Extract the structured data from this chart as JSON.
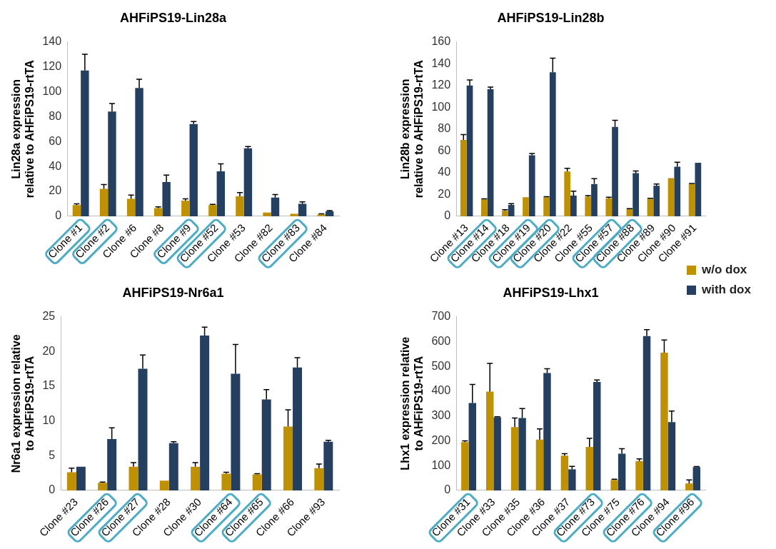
{
  "chart_data": [
    {
      "type": "bar",
      "title": "AHFiPS19-Lin28a",
      "ylabel": "Lin28a expression relative to AHFiPS19-rtTA",
      "categories": [
        "Clone #1",
        "Clone #2",
        "Clone #6",
        "Clone #8",
        "Clone #9",
        "Clone #52",
        "Clone #53",
        "Clone #82",
        "Clone #83",
        "Clone #84"
      ],
      "series": [
        {
          "name": "w/o dox",
          "color": "#bf9000",
          "values": [
            9,
            22,
            14,
            6.5,
            12.5,
            9,
            16,
            3,
            2,
            1.5
          ],
          "errors": [
            [
              9,
              10
            ],
            [
              22,
              25.5
            ],
            [
              14,
              17
            ],
            [
              6.5,
              7.5
            ],
            [
              12.5,
              14
            ],
            [
              9,
              9.5
            ],
            [
              16,
              19
            ],
            null,
            null,
            [
              1.5,
              2
            ]
          ]
        },
        {
          "name": "with dox",
          "color": "#243f60",
          "values": [
            117,
            84,
            103,
            27.5,
            74,
            36,
            54.5,
            15,
            10,
            4
          ],
          "errors": [
            [
              117,
              130
            ],
            [
              84,
              90.5
            ],
            [
              103,
              110
            ],
            [
              27.5,
              33
            ],
            [
              74,
              76
            ],
            [
              36,
              42
            ],
            [
              54.5,
              56
            ],
            [
              15,
              17.5
            ],
            [
              10,
              11.5
            ],
            [
              4,
              4.5
            ]
          ]
        }
      ],
      "ylim": [
        0,
        140
      ],
      "yticks": [
        0,
        20,
        40,
        60,
        80,
        100,
        120,
        140
      ],
      "grid": false,
      "legend": "right"
    },
    {
      "type": "bar",
      "title": "AHFiPS19-Lin28b",
      "ylabel": "Lin28b expression relative to AHFiPS19-rtTA",
      "categories": [
        "Clone #13",
        "Clone #14",
        "Clone #18",
        "Clone #19",
        "Clone #20",
        "Clone #22",
        "Clone #55",
        "Clone #57",
        "Clone #88",
        "Clone #89",
        "Clone #90",
        "Clone #91"
      ],
      "series": [
        {
          "name": "w/o dox",
          "color": "#bf9000",
          "values": [
            70,
            15.5,
            5,
            17.5,
            17.5,
            41,
            18,
            16.5,
            6.5,
            16,
            35,
            29.5
          ],
          "errors": [
            [
              70,
              75
            ],
            [
              15.5,
              16
            ],
            [
              5,
              6
            ],
            null,
            [
              17.5,
              18
            ],
            [
              41,
              44
            ],
            [
              18,
              19
            ],
            [
              16.5,
              17.5
            ],
            [
              6.5,
              7
            ],
            [
              16,
              16.5
            ],
            null,
            [
              29.5,
              30
            ]
          ]
        },
        {
          "name": "with dox",
          "color": "#243f60",
          "values": [
            120,
            116.5,
            10.5,
            56,
            132,
            19,
            29.5,
            82,
            39.5,
            28,
            45.5,
            49
          ],
          "errors": [
            [
              120,
              125
            ],
            [
              116.5,
              118.5
            ],
            [
              10.5,
              11.5
            ],
            [
              56,
              57.5
            ],
            [
              132,
              145
            ],
            [
              19,
              23
            ],
            [
              29.5,
              34.5
            ],
            [
              82,
              88
            ],
            [
              39.5,
              41.5
            ],
            [
              28,
              29.5
            ],
            [
              45.5,
              49.5
            ],
            null
          ]
        }
      ],
      "ylim": [
        0,
        160
      ],
      "yticks": [
        0,
        20,
        40,
        60,
        80,
        100,
        120,
        140,
        160
      ],
      "grid": false,
      "legend": "right"
    },
    {
      "type": "bar",
      "title": "AHFiPS19-Nr6a1",
      "ylabel": "Nr6a1 expression relative to AHFiPS19-rtTA",
      "categories": [
        "Clone #23",
        "Clone #26",
        "Clone #27",
        "Clone #28",
        "Clone #30",
        "Clone #64",
        "Clone #65",
        "Clone #66",
        "Clone #93"
      ],
      "series": [
        {
          "name": "w/o dox",
          "color": "#bf9000",
          "values": [
            2.6,
            1.1,
            3.4,
            1.4,
            3.4,
            2.4,
            2.3,
            9.2,
            3.2
          ],
          "errors": [
            [
              2.6,
              3.2
            ],
            [
              1.1,
              1.2
            ],
            [
              3.4,
              4.0
            ],
            null,
            [
              3.4,
              4.0
            ],
            [
              2.4,
              2.6
            ],
            [
              2.3,
              2.4
            ],
            [
              9.2,
              11.6
            ],
            [
              3.2,
              3.8
            ]
          ]
        },
        {
          "name": "with dox",
          "color": "#243f60",
          "values": [
            3.4,
            7.4,
            17.5,
            6.8,
            22.3,
            16.8,
            13.1,
            17.7,
            7.0
          ],
          "errors": [
            null,
            [
              7.4,
              9.0
            ],
            [
              17.5,
              19.5
            ],
            [
              6.8,
              7.0
            ],
            [
              22.3,
              23.5
            ],
            [
              16.8,
              21.0
            ],
            [
              13.1,
              14.5
            ],
            [
              17.7,
              19.1
            ],
            [
              7.0,
              7.2
            ]
          ]
        }
      ],
      "ylim": [
        0,
        25
      ],
      "yticks": [
        0,
        5,
        10,
        15,
        20,
        25
      ],
      "grid": false,
      "legend": "right"
    },
    {
      "type": "bar",
      "title": "AHFiPS19-Lhx1",
      "ylabel": "Lhx1 expression relative to AHFiPS19-rtTA",
      "categories": [
        "Clone #31",
        "Clone #33",
        "Clone #35",
        "Clone #36",
        "Clone #37",
        "Clone #73",
        "Clone #75",
        "Clone #76",
        "Clone #94",
        "Clone #96"
      ],
      "series": [
        {
          "name": "w/o dox",
          "color": "#bf9000",
          "values": [
            195,
            398,
            255,
            205,
            140,
            175,
            42,
            118,
            555,
            28
          ],
          "errors": [
            [
              195,
              200
            ],
            [
              398,
              512
            ],
            [
              255,
              292
            ],
            [
              205,
              248
            ],
            [
              140,
              148
            ],
            [
              175,
              210
            ],
            [
              42,
              45
            ],
            [
              118,
              127
            ],
            [
              555,
              606
            ],
            [
              28,
              42
            ]
          ]
        },
        {
          "name": "with dox",
          "color": "#243f60",
          "values": [
            352,
            295,
            292,
            473,
            85,
            437,
            148,
            622,
            275,
            94
          ],
          "errors": [
            [
              352,
              427
            ],
            [
              295,
              297
            ],
            [
              292,
              330
            ],
            [
              473,
              490
            ],
            [
              85,
              97
            ],
            [
              437,
              445
            ],
            [
              148,
              168
            ],
            [
              622,
              648
            ],
            [
              275,
              320
            ],
            [
              94,
              96
            ]
          ]
        }
      ],
      "ylim": [
        0,
        700
      ],
      "yticks": [
        0,
        100,
        200,
        300,
        400,
        500,
        600,
        700
      ],
      "grid": false,
      "legend": "right"
    }
  ]
}
